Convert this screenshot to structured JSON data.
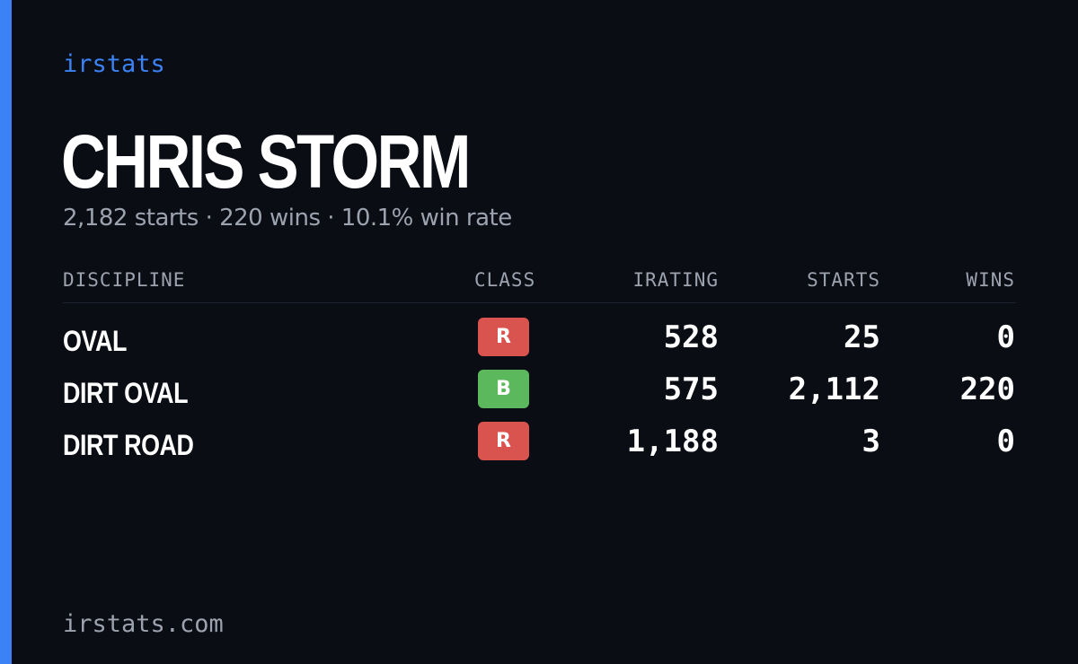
{
  "brand": "irstats",
  "driver": {
    "name": "CHRIS STORM",
    "summary": "2,182 starts · 220 wins · 10.1% win rate"
  },
  "table": {
    "headers": {
      "discipline": "DISCIPLINE",
      "class": "CLASS",
      "irating": "IRATING",
      "starts": "STARTS",
      "wins": "WINS"
    },
    "rows": [
      {
        "discipline": "OVAL",
        "class": "R",
        "class_color": "#d9534f",
        "irating": "528",
        "starts": "25",
        "wins": "0"
      },
      {
        "discipline": "DIRT OVAL",
        "class": "B",
        "class_color": "#5cb85c",
        "irating": "575",
        "starts": "2,112",
        "wins": "220"
      },
      {
        "discipline": "DIRT ROAD",
        "class": "R",
        "class_color": "#d9534f",
        "irating": "1,188",
        "starts": "3",
        "wins": "0"
      }
    ]
  },
  "footer": {
    "url": "irstats.com"
  },
  "colors": {
    "background": "#0a0d14",
    "accent": "#3b82f6",
    "muted_text": "#9ca3af",
    "text": "#ffffff"
  }
}
